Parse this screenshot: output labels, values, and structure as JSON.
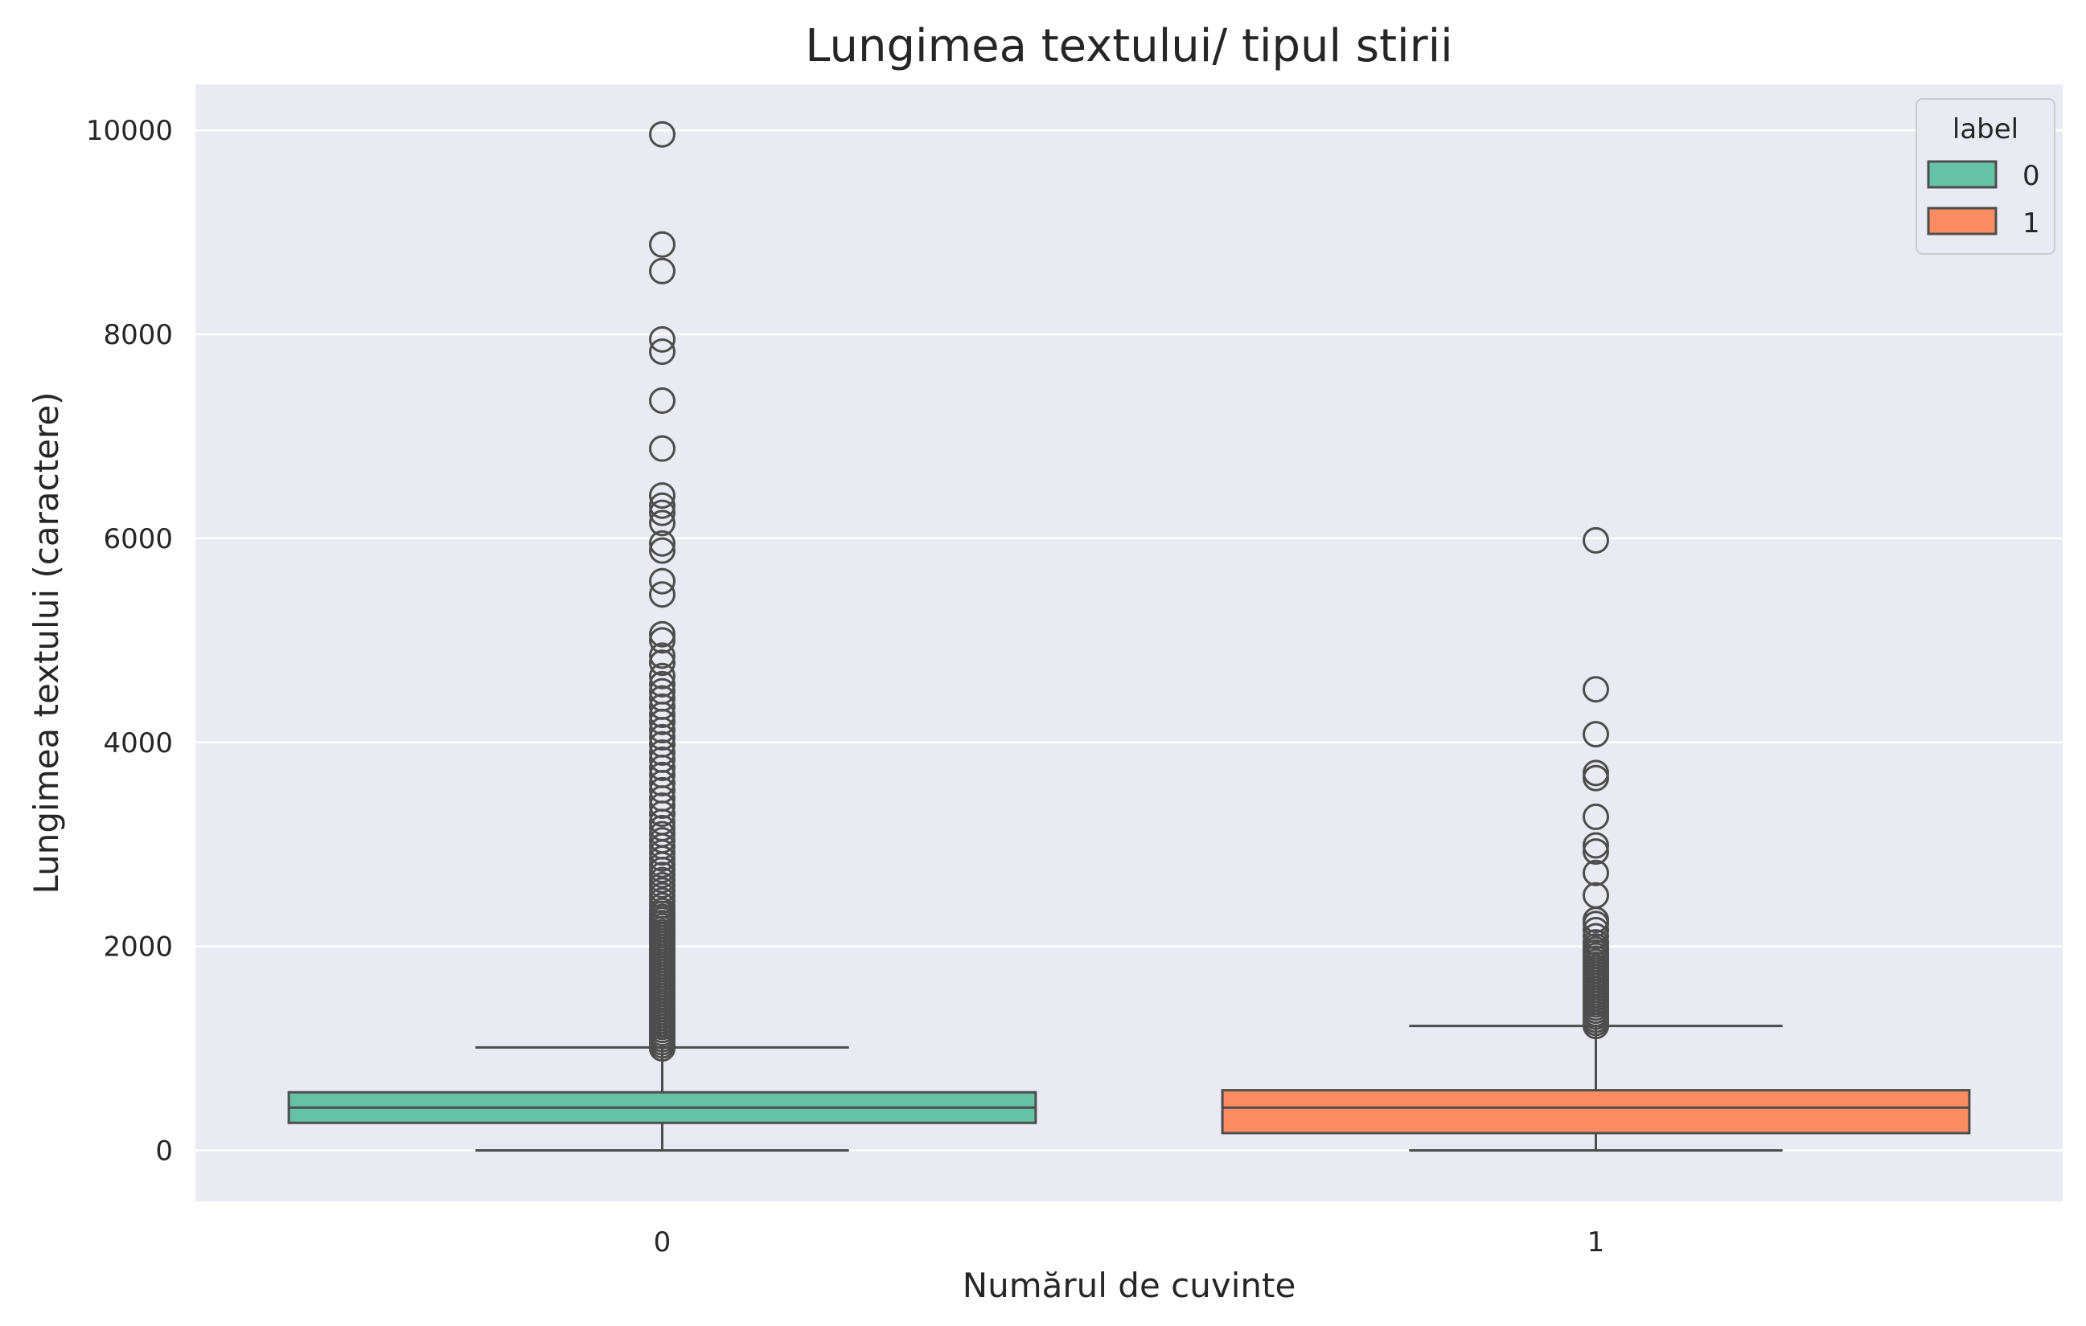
{
  "chart_data": {
    "type": "box",
    "title": "Lungimea textului/ tipul stirii",
    "xlabel": "Numărul de cuvinte",
    "ylabel": "Lungimea textului (caractere)",
    "ylim": [
      -500,
      10450
    ],
    "yticks": [
      0,
      2000,
      4000,
      6000,
      8000,
      10000
    ],
    "categories": [
      "0",
      "1"
    ],
    "grid": true,
    "legend": {
      "title": "label",
      "position": "top-right",
      "entries": [
        "0",
        "1"
      ]
    },
    "colors": {
      "background": "#eaeaf2",
      "grid": "#ffffff",
      "line": "#4d4d4d",
      "series": [
        "#66c2a5",
        "#fc8d62"
      ]
    },
    "boxes": [
      {
        "label": "0",
        "whisker_low": 0,
        "q1": 270,
        "median": 420,
        "q3": 570,
        "whisker_high": 1010,
        "outliers": [
          1000,
          1030,
          1060,
          1090,
          1120,
          1150,
          1180,
          1210,
          1240,
          1270,
          1300,
          1330,
          1360,
          1390,
          1420,
          1450,
          1480,
          1510,
          1540,
          1570,
          1600,
          1630,
          1660,
          1690,
          1720,
          1750,
          1780,
          1810,
          1840,
          1870,
          1900,
          1930,
          1960,
          1990,
          2020,
          2050,
          2080,
          2110,
          2140,
          2170,
          2200,
          2230,
          2260,
          2290,
          2320,
          2350,
          2400,
          2450,
          2500,
          2550,
          2600,
          2650,
          2700,
          2750,
          2800,
          2860,
          2920,
          2980,
          3040,
          3100,
          3160,
          3220,
          3300,
          3380,
          3450,
          3530,
          3600,
          3680,
          3750,
          3830,
          3900,
          3980,
          4050,
          4120,
          4200,
          4270,
          4350,
          4430,
          4500,
          4570,
          4650,
          4780,
          4850,
          5000,
          5060,
          5450,
          5580,
          5880,
          5950,
          6150,
          6250,
          6320,
          6420,
          6880,
          7350,
          7830,
          7950,
          8620,
          8880,
          9960
        ]
      },
      {
        "label": "1",
        "whisker_low": 0,
        "q1": 170,
        "median": 420,
        "q3": 590,
        "whisker_high": 1220,
        "outliers": [
          1220,
          1250,
          1280,
          1310,
          1340,
          1370,
          1400,
          1430,
          1460,
          1490,
          1520,
          1550,
          1580,
          1610,
          1640,
          1670,
          1700,
          1730,
          1760,
          1790,
          1820,
          1850,
          1880,
          1910,
          1940,
          1970,
          2000,
          2040,
          2100,
          2160,
          2220,
          2260,
          2500,
          2720,
          2930,
          2990,
          3270,
          3650,
          3700,
          4080,
          4520,
          5980
        ]
      }
    ]
  }
}
